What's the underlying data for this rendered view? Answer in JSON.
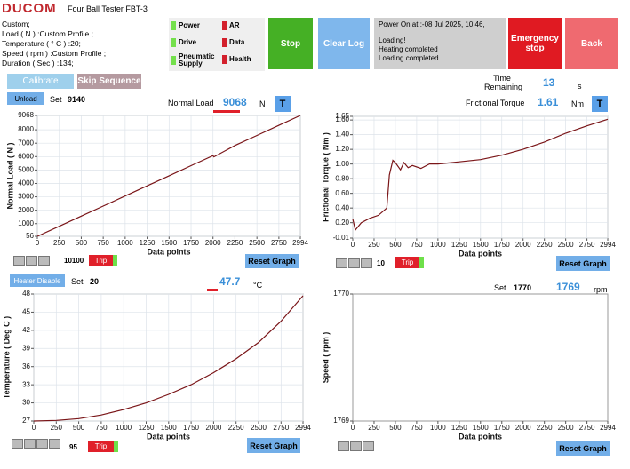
{
  "header": {
    "logo": "DUCOM",
    "title": "Four Ball Tester FBT-3"
  },
  "profile": [
    "Custom;",
    "Load ( N ) :Custom Profile ;",
    "Temperature ( ° C ) :20;",
    "Speed ( rpm ) :Custom Profile ;",
    "Duration ( Sec ) :134;"
  ],
  "indicators": [
    {
      "label": "Power",
      "color": "#74e04c"
    },
    {
      "label": "Drive",
      "color": "#74e04c"
    },
    {
      "label": "Pneumatic Supply",
      "color": "#74e04c"
    },
    {
      "label": "AR",
      "color": "#d3202c"
    },
    {
      "label": "Data",
      "color": "#d3202c"
    },
    {
      "label": "Health",
      "color": "#d3202c"
    }
  ],
  "buttons": {
    "stop": "Stop",
    "clear_log": "Clear Log",
    "emergency": "Emergency stop",
    "back": "Back",
    "calibrate": "Calibrate",
    "skip": "Skip Sequence",
    "unload": "Unload",
    "heater": "Heater Disable"
  },
  "log": [
    "Power On at :-08 Jul 2025, 10:46,",
    "Loading!",
    "Heating completed",
    "Loading completed"
  ],
  "load": {
    "set_label": "Set",
    "set": 9140,
    "label": "Normal Load",
    "value": 9068,
    "unit": "N",
    "t": "T"
  },
  "time": {
    "label": "Time Remaining",
    "value": 13,
    "unit": "s"
  },
  "torque": {
    "label": "Frictional Torque",
    "value": 1.61,
    "unit": "Nm",
    "t": "T"
  },
  "temperature": {
    "set_label": "Set",
    "set": 20,
    "value": 47.7,
    "unit": "°C"
  },
  "speed": {
    "set_label": "Set",
    "set": 1770,
    "value": 1769,
    "unit": "rpm"
  },
  "trips": [
    {
      "value": 10100,
      "label": "Trip"
    },
    {
      "value": 10,
      "label": "Trip"
    },
    {
      "value": 95,
      "label": "Trip"
    }
  ],
  "reset": [
    "Reset Graph",
    "Reset Graph",
    "Reset Graph",
    "Reset Graph"
  ],
  "chart_data": [
    {
      "type": "line",
      "xlabel": "Data points",
      "ylabel": "Normal Load ( N )",
      "x": [
        0,
        250,
        500,
        750,
        1000,
        1250,
        1500,
        1750,
        2000,
        2010,
        2250,
        2500,
        2750,
        2994
      ],
      "series": [
        {
          "color": "#7a1518",
          "values": [
            56,
            808,
            1560,
            2312,
            3066,
            3818,
            4570,
            5322,
            6074,
            5980,
            6826,
            7580,
            8332,
            9068
          ]
        }
      ],
      "xlim": [
        0,
        2994
      ],
      "xticks": [
        0,
        250,
        500,
        750,
        1000,
        1250,
        1500,
        1750,
        2000,
        2250,
        2500,
        2750,
        2994
      ],
      "ylim": [
        56,
        9068
      ],
      "yticks": [
        56,
        1000,
        2000,
        3000,
        4000,
        5000,
        6000,
        7000,
        8000,
        9068
      ],
      "grid": true
    },
    {
      "type": "line",
      "xlabel": "Data points",
      "ylabel": "Frictional Torque ( Nm )",
      "x": [
        0,
        30,
        100,
        200,
        300,
        400,
        430,
        470,
        500,
        560,
        600,
        650,
        700,
        800,
        900,
        1000,
        1250,
        1500,
        1750,
        2000,
        2250,
        2500,
        2750,
        2994
      ],
      "series": [
        {
          "color": "#7a1518",
          "values": [
            0.25,
            0.1,
            0.2,
            0.26,
            0.3,
            0.4,
            0.85,
            1.05,
            1.02,
            0.92,
            1.02,
            0.95,
            0.98,
            0.94,
            1.0,
            1.0,
            1.03,
            1.06,
            1.12,
            1.2,
            1.3,
            1.42,
            1.52,
            1.61
          ]
        }
      ],
      "xlim": [
        0,
        2994
      ],
      "xticks": [
        0,
        250,
        500,
        750,
        1000,
        1250,
        1500,
        1750,
        2000,
        2250,
        2500,
        2750,
        2994
      ],
      "ylim": [
        -0.01,
        1.65
      ],
      "yticks": [
        -0.01,
        {
          "value": 0.2,
          "label": "0.20"
        },
        {
          "value": 0.4,
          "label": "0.40"
        },
        {
          "value": 0.6,
          "label": "0.60"
        },
        {
          "value": 0.8,
          "label": "0.80"
        },
        {
          "value": 1.0,
          "label": "1.00"
        },
        {
          "value": 1.2,
          "label": "1.20"
        },
        {
          "value": 1.4,
          "label": "1.40"
        },
        {
          "value": 1.6,
          "label": "1.60"
        },
        1.65
      ],
      "grid": true
    },
    {
      "type": "line",
      "xlabel": "Data points",
      "ylabel": "Temperature ( Deg C )",
      "x": [
        0,
        250,
        500,
        750,
        1000,
        1250,
        1500,
        1750,
        2000,
        2250,
        2500,
        2750,
        2994
      ],
      "series": [
        {
          "color": "#7a1518",
          "values": [
            27,
            27.1,
            27.4,
            28,
            28.9,
            30,
            31.4,
            33,
            35,
            37.3,
            40,
            43.5,
            47.7
          ]
        }
      ],
      "xlim": [
        0,
        2994
      ],
      "xticks": [
        0,
        250,
        500,
        750,
        1000,
        1250,
        1500,
        1750,
        2000,
        2250,
        2500,
        2750,
        2994
      ],
      "ylim": [
        27,
        48
      ],
      "yticks": [
        27,
        30,
        33,
        36,
        39,
        42,
        45,
        48
      ],
      "grid": true
    },
    {
      "type": "line",
      "xlabel": "Data points",
      "ylabel": "Speed ( rpm )",
      "x": [],
      "series": [
        {
          "color": "#7a1518",
          "values": []
        }
      ],
      "xlim": [
        0,
        2994
      ],
      "xticks": [
        0,
        250,
        500,
        750,
        1000,
        1250,
        1500,
        1750,
        2000,
        2250,
        2500,
        2750,
        2994
      ],
      "ylim": [
        1769,
        1770
      ],
      "yticks": [
        1769,
        1770
      ],
      "grid": false
    }
  ]
}
